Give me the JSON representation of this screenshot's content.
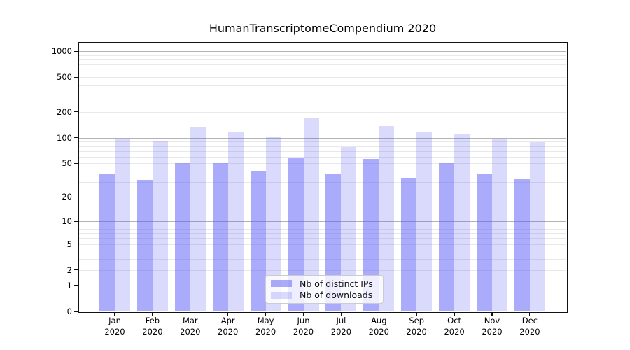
{
  "chart_data": {
    "type": "bar",
    "title": "HumanTranscriptomeCompendium 2020",
    "categories": [
      "Jan",
      "Feb",
      "Mar",
      "Apr",
      "May",
      "Jun",
      "Jul",
      "Aug",
      "Sep",
      "Oct",
      "Nov",
      "Dec"
    ],
    "category_year": "2020",
    "series": [
      {
        "name": "Nb of distinct IPs",
        "values": [
          38,
          32,
          50,
          50,
          41,
          58,
          37,
          56,
          34,
          50,
          37,
          33
        ]
      },
      {
        "name": "Nb of downloads",
        "values": [
          97,
          92,
          135,
          117,
          104,
          167,
          78,
          136,
          117,
          112,
          96,
          89
        ]
      }
    ],
    "yscale": "log1p",
    "y_ticks": [
      0,
      1,
      2,
      5,
      10,
      20,
      50,
      100,
      200,
      500,
      1000
    ],
    "ylim": [
      0,
      1260
    ],
    "grid": "horizontal-major-minor",
    "legend_position": "inside-lower-center"
  },
  "colors": {
    "bar_ips": "rgba(88,88,248,0.5)",
    "bar_downloads": "rgba(88,88,248,0.22)",
    "grid_major": "#b3b3b3",
    "grid_minor": "#e8e8e8",
    "axis": "#111111",
    "legend_border": "#cccccc"
  }
}
